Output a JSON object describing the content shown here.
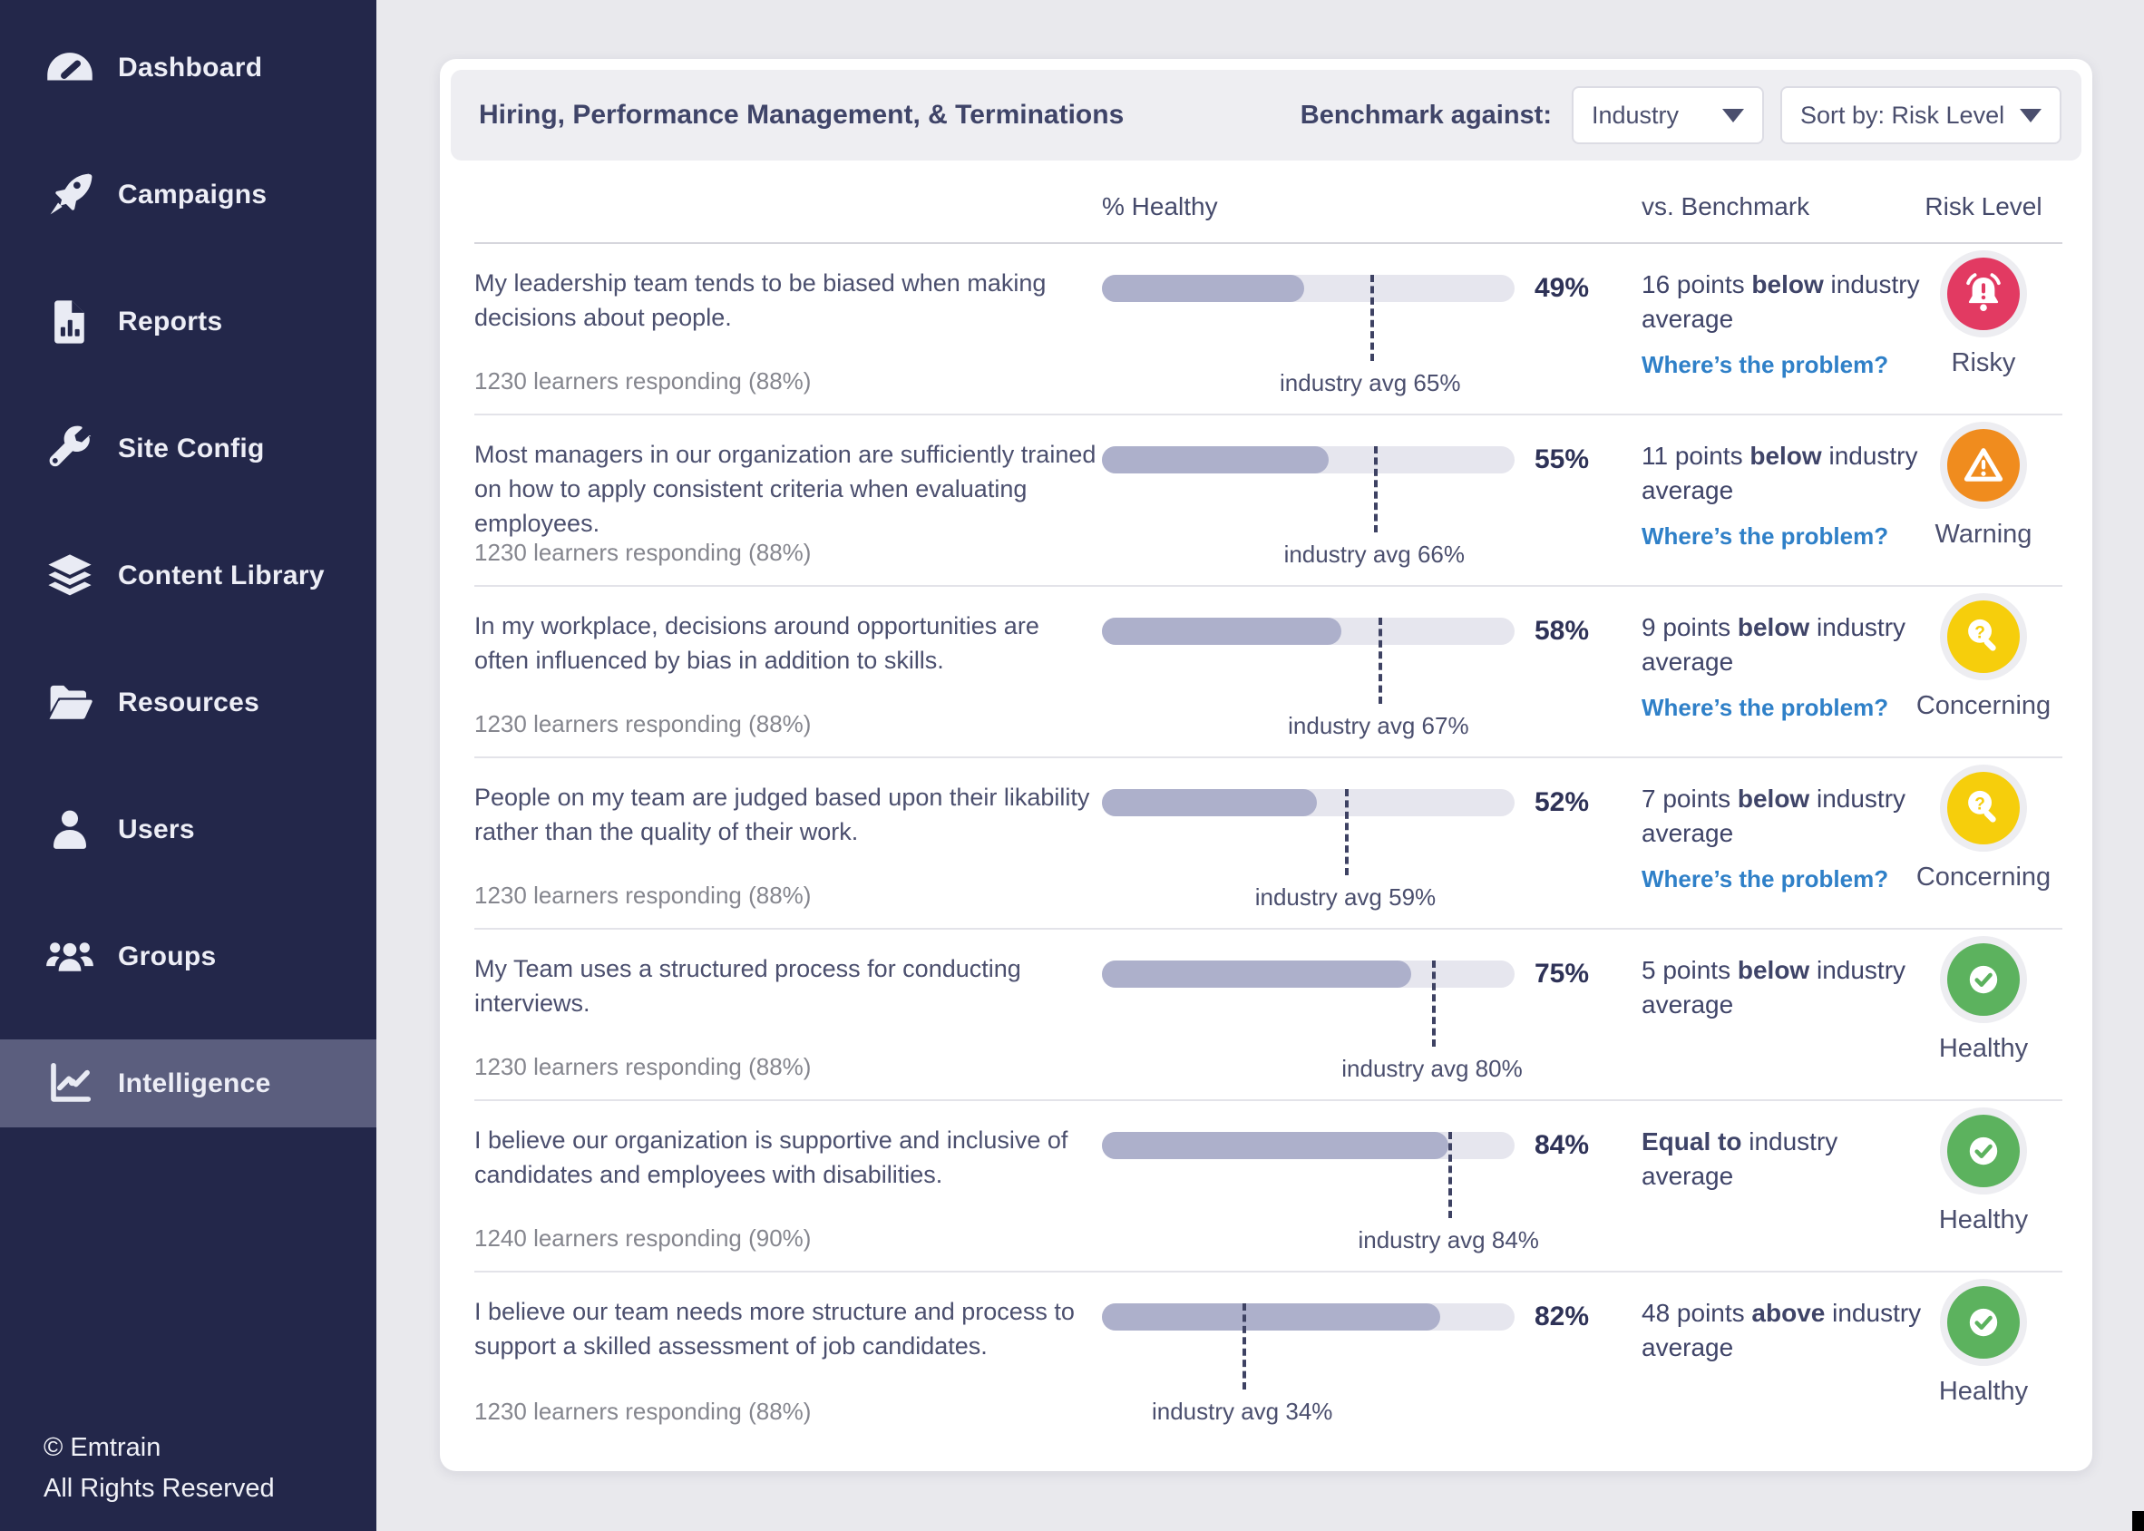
{
  "sidebar": {
    "items": [
      {
        "label": "Dashboard",
        "icon": "gauge-icon",
        "symbol": "gauge",
        "active": false
      },
      {
        "label": "Campaigns",
        "icon": "rocket-icon",
        "symbol": "rocket",
        "active": false
      },
      {
        "label": "Reports",
        "icon": "report-icon",
        "symbol": "report",
        "active": false
      },
      {
        "label": "Site Config",
        "icon": "wrench-icon",
        "symbol": "wrench",
        "active": false
      },
      {
        "label": "Content Library",
        "icon": "layers-icon",
        "symbol": "layers",
        "active": false
      },
      {
        "label": "Resources",
        "icon": "folder-icon",
        "symbol": "folder",
        "active": false
      },
      {
        "label": "Users",
        "icon": "user-icon",
        "symbol": "user",
        "active": false
      },
      {
        "label": "Groups",
        "icon": "group-icon",
        "symbol": "group",
        "active": false
      },
      {
        "label": "Intelligence",
        "icon": "chart-line-icon",
        "symbol": "chart-line",
        "active": true
      }
    ],
    "footer_line1": "© Emtrain",
    "footer_line2": "All Rights Reserved"
  },
  "header": {
    "title": "Hiring, Performance Management, & Terminations",
    "benchmark_label": "Benchmark against:",
    "dropdowns": [
      {
        "value": "Industry"
      },
      {
        "value": "Sort by: Risk Level"
      }
    ]
  },
  "table": {
    "columns": [
      "% Healthy",
      "vs. Benchmark",
      "Risk Level"
    ],
    "link_label": "Where’s the problem?",
    "rows": [
      {
        "statement": "My leadership team tends to be biased when making decisions about people.",
        "responding": "1230 learners responding (88%)",
        "healthy_pct": 49,
        "healthy_label": "49%",
        "industry_avg_pct": 65,
        "industry_avg_label": "industry avg 65%",
        "benchmark": [
          {
            "text": "16 points ",
            "bold": false
          },
          {
            "text": "below",
            "bold": true
          },
          {
            "text": " industry average",
            "bold": false
          }
        ],
        "link": true,
        "risk": {
          "label": "Risky",
          "icon": "alarm-bell-icon",
          "symbol": "alarm-bell",
          "color": "#E23A62"
        }
      },
      {
        "statement": "Most managers in our organization are sufficiently trained on how to apply consistent criteria when evaluating employees.",
        "responding": "1230 learners responding (88%)",
        "healthy_pct": 55,
        "healthy_label": "55%",
        "industry_avg_pct": 66,
        "industry_avg_label": "industry avg 66%",
        "benchmark": [
          {
            "text": "11 points ",
            "bold": false
          },
          {
            "text": "below",
            "bold": true
          },
          {
            "text": " industry average",
            "bold": false
          }
        ],
        "link": true,
        "risk": {
          "label": "Warning",
          "icon": "warning-triangle-icon",
          "symbol": "warning-triangle",
          "color": "#F08C1E"
        }
      },
      {
        "statement": "In my workplace, decisions around opportunities are often influenced by bias in addition to skills.",
        "responding": "1230 learners responding (88%)",
        "healthy_pct": 58,
        "healthy_label": "58%",
        "industry_avg_pct": 67,
        "industry_avg_label": "industry avg 67%",
        "benchmark": [
          {
            "text": "9 points ",
            "bold": false
          },
          {
            "text": "below",
            "bold": true
          },
          {
            "text": " industry average",
            "bold": false
          }
        ],
        "link": true,
        "risk": {
          "label": "Concerning",
          "icon": "magnifier-question-icon",
          "symbol": "magnifier-question",
          "color": "#F6CE0C"
        }
      },
      {
        "statement": "People on my team are judged based upon their likability rather than the quality of their work.",
        "responding": "1230 learners responding (88%)",
        "healthy_pct": 52,
        "healthy_label": "52%",
        "industry_avg_pct": 59,
        "industry_avg_label": "industry avg 59%",
        "benchmark": [
          {
            "text": "7 points ",
            "bold": false
          },
          {
            "text": "below",
            "bold": true
          },
          {
            "text": " industry average",
            "bold": false
          }
        ],
        "link": true,
        "risk": {
          "label": "Concerning",
          "icon": "magnifier-question-icon",
          "symbol": "magnifier-question",
          "color": "#F6CE0C"
        }
      },
      {
        "statement": "My Team uses a structured process for conducting interviews.",
        "responding": "1230 learners responding (88%)",
        "healthy_pct": 75,
        "healthy_label": "75%",
        "industry_avg_pct": 80,
        "industry_avg_label": "industry avg 80%",
        "benchmark": [
          {
            "text": "5 points ",
            "bold": false
          },
          {
            "text": "below",
            "bold": true
          },
          {
            "text": " industry average",
            "bold": false
          }
        ],
        "link": false,
        "risk": {
          "label": "Healthy",
          "icon": "check-circle-icon",
          "symbol": "check-circle",
          "color": "#5CB25E"
        }
      },
      {
        "statement": "I believe our organization is supportive and inclusive of candidates and employees with disabilities.",
        "responding": "1240 learners responding (90%)",
        "healthy_pct": 84,
        "healthy_label": "84%",
        "industry_avg_pct": 84,
        "industry_avg_label": "industry avg 84%",
        "benchmark": [
          {
            "text": "Equal to",
            "bold": true
          },
          {
            "text": " industry average",
            "bold": false
          }
        ],
        "link": false,
        "risk": {
          "label": "Healthy",
          "icon": "check-circle-icon",
          "symbol": "check-circle",
          "color": "#5CB25E"
        }
      },
      {
        "statement": "I believe our team needs more structure and process to support a skilled assessment of job candidates.",
        "responding": "1230 learners responding (88%)",
        "healthy_pct": 82,
        "healthy_label": "82%",
        "industry_avg_pct": 34,
        "industry_avg_label": "industry avg 34%",
        "benchmark": [
          {
            "text": "48 points ",
            "bold": false
          },
          {
            "text": "above",
            "bold": true
          },
          {
            "text": " industry average",
            "bold": false
          }
        ],
        "link": false,
        "risk": {
          "label": "Healthy",
          "icon": "check-circle-icon",
          "symbol": "check-circle",
          "color": "#5CB25E"
        }
      }
    ]
  },
  "colors": {
    "sidebar_bg": "#23274A",
    "sidebar_active_bg": "#5B5E7E",
    "link": "#2F80C8",
    "bar_fill": "#ADB0CB",
    "bar_track": "#E6E6EE",
    "benchmark_marker": "#3E4263",
    "risky": "#E23A62",
    "warning": "#F08C1E",
    "concerning": "#F6CE0C",
    "healthy": "#5CB25E",
    "badge_ring": "#EDEDF1"
  }
}
